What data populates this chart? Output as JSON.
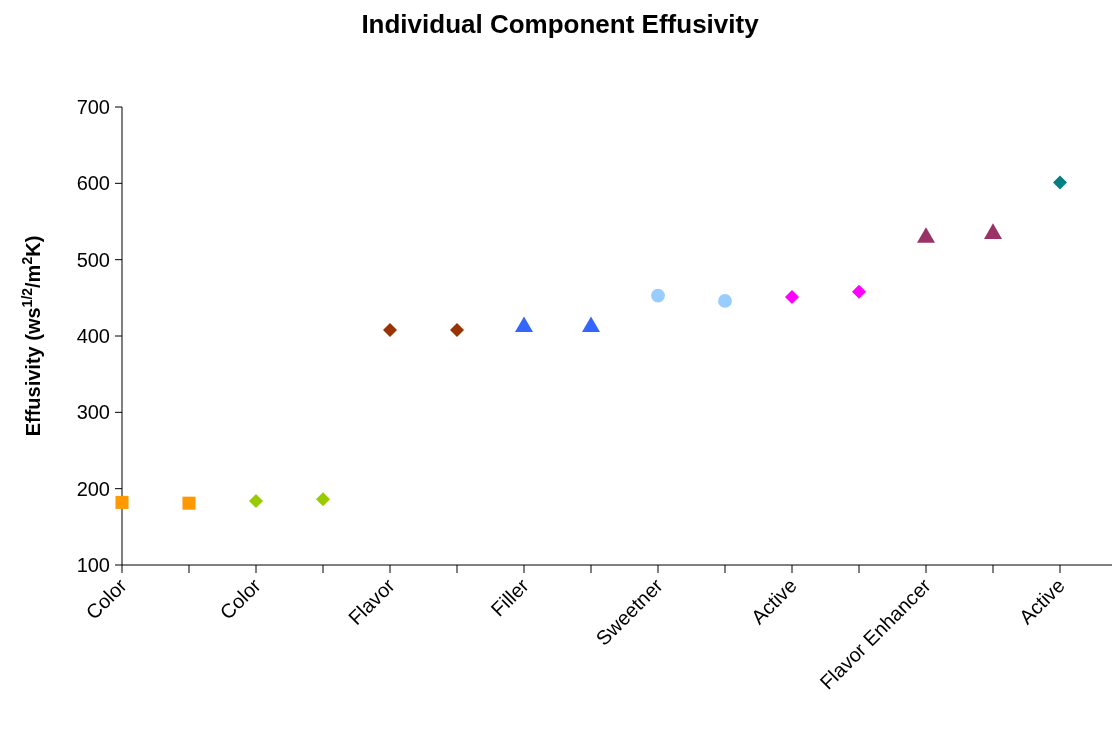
{
  "chart_data": {
    "type": "scatter",
    "title": "Individual Component Effusivity",
    "ylabel": "Effusivity (ws$^{1/2}$/m$^{2}$K)",
    "categories": [
      "Color",
      null,
      "Color",
      null,
      "Flavor",
      null,
      "Filler",
      null,
      "Sweetner",
      null,
      "Active",
      null,
      "Flavor Enhancer",
      null,
      "Active"
    ],
    "ylim": [
      100,
      700
    ],
    "yticks": [
      100,
      200,
      300,
      400,
      500,
      600,
      700
    ],
    "grid": false,
    "series": [
      {
        "color": "#ff9900",
        "marker": "square",
        "values": [
          182,
          181,
          null,
          null,
          null,
          null,
          null,
          null,
          null,
          null,
          null,
          null,
          null,
          null,
          null
        ]
      },
      {
        "color": "#99cc00",
        "marker": "diamond",
        "values": [
          null,
          null,
          184,
          186,
          null,
          null,
          null,
          null,
          null,
          null,
          null,
          null,
          null,
          null,
          null
        ]
      },
      {
        "color": "#993300",
        "marker": "diamond",
        "values": [
          null,
          null,
          null,
          null,
          408,
          408,
          null,
          null,
          null,
          null,
          null,
          null,
          null,
          null,
          null
        ]
      },
      {
        "color": "#3366ff",
        "marker": "triangle",
        "values": [
          null,
          null,
          null,
          null,
          null,
          null,
          412,
          412,
          null,
          null,
          null,
          null,
          null,
          null,
          null
        ]
      },
      {
        "color": "#99ccff",
        "marker": "circle",
        "values": [
          null,
          null,
          null,
          null,
          null,
          null,
          null,
          null,
          453,
          446,
          null,
          null,
          null,
          null,
          null
        ]
      },
      {
        "color": "#ff00ff",
        "marker": "diamond",
        "values": [
          null,
          null,
          null,
          null,
          null,
          null,
          null,
          null,
          null,
          null,
          451,
          458,
          null,
          null,
          null
        ]
      },
      {
        "color": "#993366",
        "marker": "triangle",
        "values": [
          null,
          null,
          null,
          null,
          null,
          null,
          null,
          null,
          null,
          null,
          null,
          null,
          529,
          534,
          null
        ]
      },
      {
        "color": "#008080",
        "marker": "diamond",
        "values": [
          null,
          null,
          null,
          null,
          null,
          null,
          null,
          null,
          null,
          null,
          null,
          null,
          null,
          null,
          601
        ]
      }
    ]
  }
}
